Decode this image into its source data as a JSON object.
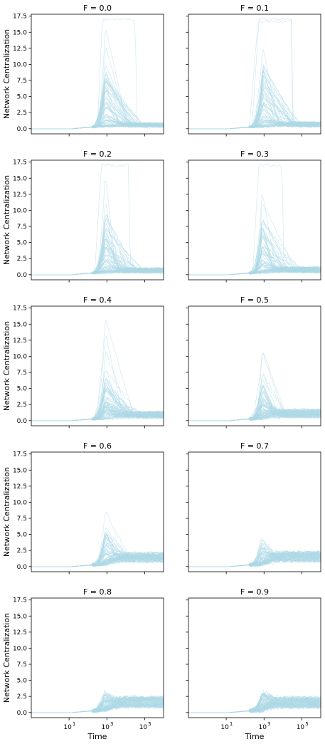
{
  "chart_data": {
    "type": "line",
    "series_color": "#add8e6",
    "ylabel": "Network Centralization",
    "xlabel": "Time",
    "x_scale": "log",
    "xlim": [
      0.1,
      1000000
    ],
    "ylim": [
      -0.8,
      17.8
    ],
    "yticks": [
      0.0,
      2.5,
      5.0,
      7.5,
      10.0,
      12.5,
      15.0,
      17.5
    ],
    "ytick_labels": [
      "0.0",
      "2.5",
      "5.0",
      "7.5",
      "10.0",
      "12.5",
      "15.0",
      "17.5"
    ],
    "xticks": [
      10,
      1000,
      100000
    ],
    "xtick_labels": [
      "10",
      "10",
      "10"
    ],
    "xtick_exponents": [
      "1",
      "3",
      "5"
    ],
    "grid": false,
    "panels": [
      {
        "title": "F = 0.0",
        "F": 0.0,
        "max_peak": 17.0,
        "typical_peak": 7.0,
        "late_level": 0.6
      },
      {
        "title": "F = 0.1",
        "F": 0.1,
        "max_peak": 17.0,
        "typical_peak": 7.0,
        "late_level": 0.7
      },
      {
        "title": "F = 0.2",
        "F": 0.2,
        "max_peak": 17.0,
        "typical_peak": 7.0,
        "late_level": 0.7
      },
      {
        "title": "F = 0.3",
        "F": 0.3,
        "max_peak": 17.0,
        "typical_peak": 6.5,
        "late_level": 0.8
      },
      {
        "title": "F = 0.4",
        "F": 0.4,
        "max_peak": 16.0,
        "typical_peak": 6.0,
        "late_level": 1.0
      },
      {
        "title": "F = 0.5",
        "F": 0.5,
        "max_peak": 11.0,
        "typical_peak": 5.0,
        "late_level": 1.2
      },
      {
        "title": "F = 0.6",
        "F": 0.6,
        "max_peak": 8.7,
        "typical_peak": 4.0,
        "late_level": 1.5
      },
      {
        "title": "F = 0.7",
        "F": 0.7,
        "max_peak": 4.3,
        "typical_peak": 2.5,
        "late_level": 1.6
      },
      {
        "title": "F = 0.8",
        "F": 0.8,
        "max_peak": 3.3,
        "typical_peak": 2.2,
        "late_level": 1.7
      },
      {
        "title": "F = 0.9",
        "F": 0.9,
        "max_peak": 3.4,
        "typical_peak": 2.0,
        "late_level": 1.7
      }
    ]
  }
}
